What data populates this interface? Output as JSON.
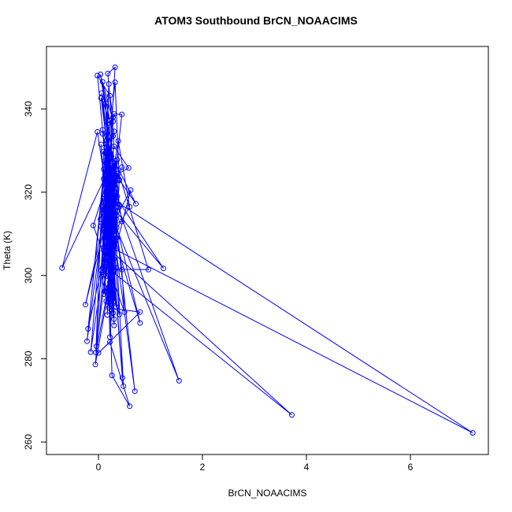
{
  "chart_data": {
    "type": "line",
    "title": "ATOM3 Southbound BrCN_NOAACIMS",
    "xlabel": "BrCN_NOAACIMS",
    "ylabel": "Theta (K)",
    "xlim": [
      -1,
      7.5
    ],
    "ylim": [
      257,
      355
    ],
    "xticks": [
      0,
      2,
      4,
      6
    ],
    "yticks": [
      260,
      280,
      300,
      320,
      340
    ],
    "grid": false,
    "legend": "none",
    "series_color": "#0000ff",
    "marker": "open-circle",
    "series": [
      {
        "values": [
          [
            0.05,
            331.5
          ],
          [
            0.12,
            318.0
          ],
          [
            0.2,
            306.5
          ],
          [
            0.1,
            295.5
          ],
          [
            0.25,
            310.0
          ],
          [
            0.18,
            325.0
          ],
          [
            -0.7,
            301.8
          ],
          [
            -0.02,
            334.5
          ],
          [
            0.15,
            320.5
          ],
          [
            0.32,
            327.0
          ],
          [
            0.22,
            312.0
          ],
          [
            0.08,
            300.8
          ],
          [
            0.28,
            315.5
          ],
          [
            0.17,
            290.5
          ],
          [
            0.3,
            334.6
          ],
          [
            0.05,
            342.6
          ],
          [
            0.22,
            326.0
          ],
          [
            0.1,
            306.8
          ],
          [
            0.35,
            309.0
          ],
          [
            0.06,
            343.8
          ],
          [
            0.21,
            330.5
          ],
          [
            0.12,
            316.0
          ],
          [
            -0.22,
            284.2
          ],
          [
            0.12,
            327.5
          ],
          [
            0.25,
            321.5
          ],
          [
            0.18,
            313.5
          ],
          [
            0.3,
            319.0
          ],
          [
            0.2,
            301.5
          ],
          [
            0.96,
            301.4
          ],
          [
            0.32,
            327.5
          ],
          [
            0.4,
            317.0
          ],
          [
            0.16,
            311.5
          ],
          [
            0.13,
            329.5
          ],
          [
            0.25,
            304.0
          ],
          [
            0.18,
            336.5
          ],
          [
            0.08,
            346.5
          ],
          [
            0.28,
            337.0
          ],
          [
            0.12,
            313.0
          ],
          [
            0.2,
            322.8
          ],
          [
            0.22,
            299.5
          ],
          [
            0.25,
            308.5
          ],
          [
            0.15,
            293.8
          ],
          [
            0.05,
            301.2
          ],
          [
            0.2,
            317.5
          ],
          [
            1.25,
            301.7
          ],
          [
            0.3,
            319.5
          ],
          [
            0.18,
            329.0
          ],
          [
            -0.15,
            281.6
          ],
          [
            0.12,
            304.5
          ],
          [
            0.32,
            312.5
          ],
          [
            0.22,
            326.5
          ],
          [
            0.1,
            314.8
          ],
          [
            0.26,
            320.5
          ],
          [
            0.16,
            332.5
          ],
          [
            0.18,
            303.0
          ],
          [
            0.3,
            310.5
          ],
          [
            0.14,
            322.0
          ],
          [
            0.08,
            301.8
          ],
          [
            0.2,
            293.5
          ],
          [
            0.28,
            317.8
          ],
          [
            0.45,
            301.4
          ],
          [
            0.5,
            291.2
          ],
          [
            -0.1,
            312.0
          ],
          [
            0.25,
            325.8
          ],
          [
            0.12,
            317.5
          ],
          [
            0.3,
            338.8
          ],
          [
            0.45,
            338.7
          ],
          [
            0.18,
            308.0
          ],
          [
            0.24,
            315.8
          ],
          [
            0.1,
            300.2
          ],
          [
            0.2,
            346.0
          ],
          [
            0.15,
            331.6
          ],
          [
            0.3,
            320.0
          ],
          [
            0.12,
            318.5
          ],
          [
            0.22,
            306.0
          ],
          [
            0.38,
            324.5
          ],
          [
            0.58,
            325.8
          ],
          [
            0.3,
            331.0
          ],
          [
            0.04,
            313.5
          ],
          [
            0.26,
            321.2
          ],
          [
            0.16,
            309.5
          ],
          [
            0.22,
            328.5
          ],
          [
            0.35,
            311.5
          ],
          [
            0.28,
            302.0
          ],
          [
            0.1,
            316.5
          ],
          [
            0.45,
            326.0
          ],
          [
            0.2,
            319.5
          ],
          [
            0.15,
            305.8
          ],
          [
            0.3,
            322.5
          ],
          [
            0.08,
            334.0
          ],
          [
            0.25,
            318.2
          ],
          [
            -0.25,
            293.0
          ],
          [
            0.36,
            327.8
          ],
          [
            0.18,
            303.5
          ],
          [
            0.3,
            310.8
          ],
          [
            0.1,
            325.5
          ],
          [
            0.22,
            314.5
          ],
          [
            0.2,
            300.2
          ],
          [
            0.62,
            320.5
          ],
          [
            0.12,
            308.8
          ],
          [
            0.15,
            317.2
          ],
          [
            0.3,
            326.2
          ],
          [
            0.22,
            329.5
          ],
          [
            0.32,
            350.0
          ],
          [
            0.18,
            348.5
          ],
          [
            0.28,
            333.5
          ],
          [
            0.1,
            323.2
          ],
          [
            0.25,
            312.8
          ],
          [
            0.16,
            306.2
          ],
          [
            0.2,
            330.2
          ],
          [
            0.72,
            317.2
          ],
          [
            0.4,
            323.0
          ],
          [
            0.3,
            301.4
          ],
          [
            0.12,
            296.2
          ],
          [
            0.2,
            327.6
          ],
          [
            0.35,
            320.8
          ],
          [
            0.24,
            311.0
          ],
          [
            0.18,
            296.5
          ],
          [
            -0.05,
            281.5
          ],
          [
            0.1,
            329.8
          ],
          [
            0.32,
            324.2
          ],
          [
            0.04,
            348.3
          ],
          [
            0.22,
            337.2
          ],
          [
            -0.2,
            287.2
          ],
          [
            0.3,
            315.2
          ],
          [
            0.16,
            330.8
          ],
          [
            0.15,
            322.6
          ],
          [
            0.25,
            309.2
          ],
          [
            0.6,
            316.5
          ],
          [
            0.38,
            332.3
          ],
          [
            0.2,
            319.0
          ],
          [
            0.1,
            306.0
          ],
          [
            0.28,
            313.8
          ],
          [
            0.22,
            294.2
          ],
          [
            0.34,
            301.8
          ],
          [
            0.15,
            327.0
          ],
          [
            0.3,
            323.5
          ],
          [
            0.22,
            318.6
          ],
          [
            0.18,
            304.2
          ],
          [
            0.05,
            311.8
          ],
          [
            0.45,
            313.0
          ],
          [
            0.25,
            328.6
          ],
          [
            0.18,
            319.8
          ],
          [
            0.26,
            308.0
          ],
          [
            0.3,
            301.0
          ],
          [
            0.12,
            311.2
          ],
          [
            0.22,
            324.8
          ],
          [
            0.3,
            319.2
          ],
          [
            0.2,
            315.0
          ],
          [
            0.08,
            335.0
          ],
          [
            0.4,
            322.8
          ],
          [
            0.32,
            346.4
          ],
          [
            0.16,
            327.2
          ],
          [
            0.3,
            320.2
          ],
          [
            0.12,
            303.8
          ],
          [
            0.2,
            319.6
          ],
          [
            0.8,
            288.6
          ],
          [
            0.22,
            313.0
          ],
          [
            0.35,
            324.0
          ],
          [
            0.16,
            309.0
          ],
          [
            0.28,
            338.0
          ],
          [
            0.22,
            343.2
          ],
          [
            -0.02,
            348.0
          ],
          [
            0.3,
            306.5
          ],
          [
            0.14,
            341.4
          ],
          [
            0.2,
            318.4
          ],
          [
            0.3,
            308.8
          ],
          [
            0.16,
            327.6
          ],
          [
            0.22,
            298.4
          ],
          [
            0.12,
            314.2
          ],
          [
            0.36,
            323.2
          ],
          [
            0.25,
            316.6
          ],
          [
            0.2,
            329.2
          ],
          [
            0.28,
            305.4
          ],
          [
            0.16,
            321.4
          ],
          [
            0.3,
            312.0
          ],
          [
            0.24,
            293.2
          ],
          [
            0.18,
            317.6
          ],
          [
            0.22,
            320.8
          ],
          [
            0.3,
            309.6
          ],
          [
            0.38,
            316.4
          ],
          [
            0.16,
            324.6
          ],
          [
            0.1,
            301.6
          ],
          [
            0.22,
            318.0
          ],
          [
            0.3,
            313.4
          ],
          [
            0.2,
            329.8
          ],
          [
            0.12,
            310.4
          ],
          [
            0.25,
            322.0
          ],
          [
            0.7,
            272.2
          ],
          [
            0.2,
            319.4
          ],
          [
            0.35,
            314.4
          ],
          [
            0.28,
            321.6
          ],
          [
            0.16,
            309.2
          ],
          [
            0.3,
            325.0
          ],
          [
            0.22,
            316.0
          ],
          [
            0.18,
            306.6
          ],
          [
            3.72,
            266.5
          ],
          [
            0.24,
            301.2
          ],
          [
            0.3,
            314.0
          ],
          [
            0.14,
            320.0
          ],
          [
            0.26,
            308.2
          ],
          [
            0.46,
            275.4
          ],
          [
            0.2,
            316.8
          ],
          [
            0.3,
            322.4
          ],
          [
            0.16,
            312.2
          ],
          [
            0.22,
            302.6
          ],
          [
            0.36,
            319.0
          ],
          [
            0.18,
            327.8
          ],
          [
            -0.04,
            283.0
          ],
          [
            0.3,
            317.0
          ],
          [
            0.24,
            309.8
          ],
          [
            0.16,
            321.8
          ],
          [
            0.34,
            313.6
          ],
          [
            0.2,
            304.8
          ],
          [
            0.28,
            318.8
          ],
          [
            0.3,
            288.0
          ],
          [
            0.22,
            325.6
          ],
          [
            0.16,
            310.2
          ],
          [
            0.3,
            306.4
          ],
          [
            0.2,
            315.8
          ],
          [
            1.55,
            274.7
          ],
          [
            0.26,
            320.6
          ],
          [
            0.18,
            313.2
          ],
          [
            0.32,
            308.4
          ],
          [
            0.22,
            301.8
          ],
          [
            0.16,
            322.8
          ],
          [
            0.48,
            273.4
          ],
          [
            0.3,
            318.0
          ],
          [
            0.2,
            311.4
          ],
          [
            0.24,
            296.4
          ],
          [
            0.28,
            291.0
          ],
          [
            0.18,
            312.6
          ],
          [
            -0.06,
            278.6
          ],
          [
            0.3,
            304.0
          ],
          [
            0.22,
            318.4
          ],
          [
            0.16,
            309.4
          ],
          [
            0.34,
            292.4
          ],
          [
            0.2,
            314.6
          ],
          [
            0.3,
            301.0
          ],
          [
            0.22,
            285.2
          ],
          [
            0.16,
            319.2
          ],
          [
            7.2,
            262.2
          ],
          [
            0.24,
            306.8
          ],
          [
            0.3,
            313.6
          ],
          [
            0.18,
            299.8
          ],
          [
            0.4,
            290.6
          ],
          [
            0.22,
            320.6
          ],
          [
            0.28,
            293.6
          ],
          [
            0.16,
            305.2
          ],
          [
            0.3,
            311.6
          ],
          [
            0.2,
            300.8
          ],
          [
            0.26,
            276.0
          ],
          [
            0.6,
            268.6
          ],
          [
            0.22,
            284.0
          ],
          [
            0.0,
            281.4
          ],
          [
            0.8,
            291.2
          ],
          [
            0.2,
            292.2
          ],
          [
            0.3,
            289.5
          ],
          [
            0.18,
            296.0
          ]
        ]
      }
    ]
  }
}
